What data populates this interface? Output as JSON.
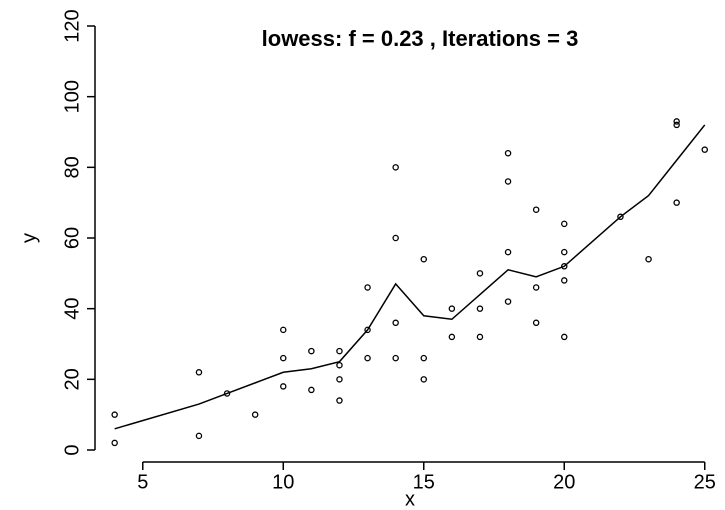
{
  "chart_data": {
    "type": "scatter",
    "title": "lowess: f = 0.23 , Iterations = 3",
    "xlabel": "x",
    "ylabel": "y",
    "x": [
      4,
      4,
      7,
      7,
      8,
      9,
      10,
      10,
      10,
      11,
      11,
      12,
      12,
      12,
      12,
      13,
      13,
      13,
      14,
      14,
      14,
      14,
      15,
      15,
      15,
      16,
      16,
      17,
      17,
      17,
      18,
      18,
      18,
      18,
      19,
      19,
      19,
      20,
      20,
      20,
      20,
      20,
      22,
      23,
      24,
      24,
      24,
      25
    ],
    "y": [
      2,
      10,
      4,
      22,
      16,
      10,
      18,
      26,
      34,
      17,
      28,
      14,
      20,
      24,
      28,
      26,
      34,
      46,
      26,
      36,
      60,
      80,
      20,
      26,
      54,
      32,
      40,
      32,
      40,
      50,
      42,
      56,
      76,
      84,
      36,
      46,
      68,
      32,
      48,
      52,
      56,
      64,
      66,
      54,
      70,
      92,
      93,
      85
    ],
    "color": "#000000",
    "line_x": [
      4,
      7,
      8,
      9,
      10,
      11,
      12,
      13,
      14,
      15,
      16,
      17,
      18,
      19,
      20,
      22,
      23,
      24,
      25
    ],
    "line_y": [
      6,
      13,
      16,
      19,
      22,
      23,
      25,
      34,
      47,
      38,
      37,
      44,
      51,
      49,
      52,
      66,
      72,
      82,
      92
    ],
    "xlim": [
      3.3,
      25.4
    ],
    "ylim": [
      0,
      120
    ],
    "xticks": [
      5,
      10,
      15,
      20,
      25
    ],
    "yticks": [
      0,
      20,
      40,
      60,
      80,
      100,
      120
    ]
  }
}
